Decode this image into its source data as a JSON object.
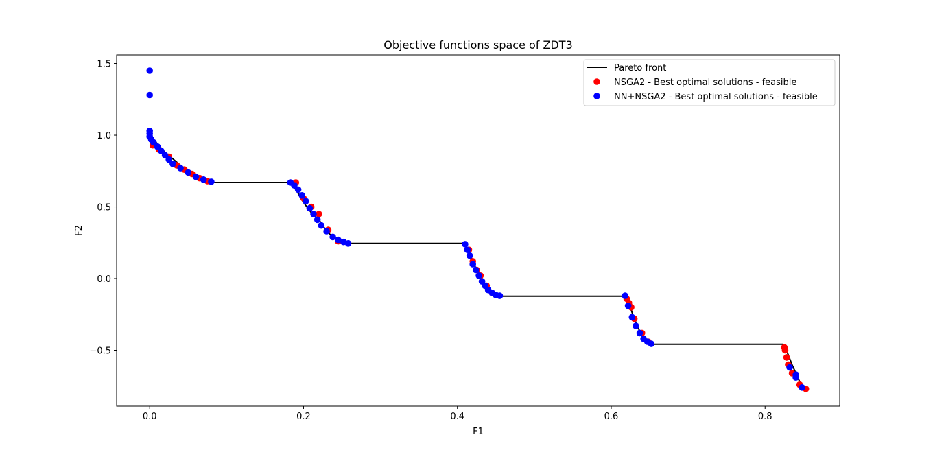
{
  "colors": {
    "pareto_front": "#000000",
    "nsga2": "#ff0000",
    "nn_nsga2": "#0000ff"
  },
  "chart_data": {
    "type": "scatter",
    "title": "Objective functions space of ZDT3",
    "xlabel": "F1",
    "ylabel": "F2",
    "xlim": [
      -0.043,
      0.897
    ],
    "ylim": [
      -0.89,
      1.56
    ],
    "xticks": [
      0.0,
      0.2,
      0.4,
      0.6,
      0.8
    ],
    "xtick_labels": [
      "0.0",
      "0.2",
      "0.4",
      "0.6",
      "0.8"
    ],
    "yticks": [
      -0.5,
      0.0,
      0.5,
      1.0,
      1.5
    ],
    "ytick_labels": [
      "−0.5",
      "0.0",
      "0.5",
      "1.0",
      "1.5"
    ],
    "grid": false,
    "legend_position": "top-right",
    "legend": [
      {
        "label": "Pareto front",
        "marker": "line",
        "color": "#000000"
      },
      {
        "label": "NSGA2 - Best optimal solutions - feasible",
        "marker": "circle",
        "color": "#ff0000"
      },
      {
        "label": "NN+NSGA2 - Best optimal solutions - feasible",
        "marker": "circle",
        "color": "#0000ff"
      }
    ],
    "series": [
      {
        "name": "Pareto front",
        "kind": "line",
        "color": "#000000",
        "x": [
          0.0,
          0.02,
          0.04,
          0.06,
          0.083,
          0.182,
          0.19,
          0.2,
          0.21,
          0.22,
          0.23,
          0.24,
          0.25,
          0.257,
          0.409,
          0.415,
          0.42,
          0.425,
          0.43,
          0.435,
          0.44,
          0.445,
          0.45,
          0.4538,
          0.6184,
          0.622,
          0.626,
          0.63,
          0.634,
          0.638,
          0.642,
          0.646,
          0.65,
          0.6525,
          0.8234,
          0.83,
          0.835,
          0.84,
          0.845,
          0.8518
        ],
        "y": [
          1.0,
          0.88,
          0.79,
          0.71,
          0.67,
          0.67,
          0.62,
          0.53,
          0.46,
          0.41,
          0.33,
          0.28,
          0.255,
          0.245,
          0.245,
          0.19,
          0.12,
          0.06,
          0.02,
          -0.03,
          -0.07,
          -0.09,
          -0.115,
          -0.123,
          -0.123,
          -0.16,
          -0.22,
          -0.28,
          -0.33,
          -0.38,
          -0.41,
          -0.44,
          -0.455,
          -0.458,
          -0.458,
          -0.53,
          -0.6,
          -0.66,
          -0.72,
          -0.773
        ]
      },
      {
        "name": "NSGA2 - Best optimal solutions - feasible",
        "kind": "scatter",
        "color": "#ff0000",
        "x": [
          0.004,
          0.012,
          0.025,
          0.035,
          0.045,
          0.055,
          0.065,
          0.075,
          0.19,
          0.2,
          0.21,
          0.22,
          0.232,
          0.245,
          0.415,
          0.42,
          0.425,
          0.43,
          0.438,
          0.445,
          0.62,
          0.623,
          0.626,
          0.63,
          0.64,
          0.648,
          0.825,
          0.826,
          0.828,
          0.83,
          0.835,
          0.845,
          0.853
        ],
        "y": [
          0.93,
          0.9,
          0.85,
          0.79,
          0.76,
          0.73,
          0.7,
          0.68,
          0.67,
          0.56,
          0.5,
          0.45,
          0.34,
          0.26,
          0.2,
          0.12,
          0.06,
          0.02,
          -0.05,
          -0.1,
          -0.14,
          -0.17,
          -0.2,
          -0.28,
          -0.38,
          -0.44,
          -0.48,
          -0.5,
          -0.55,
          -0.6,
          -0.66,
          -0.74,
          -0.77
        ]
      },
      {
        "name": "NN+NSGA2 - Best optimal solutions - feasible",
        "kind": "scatter",
        "color": "#0000ff",
        "x": [
          0.0,
          0.0,
          0.0,
          0.0,
          0.0,
          0.002,
          0.005,
          0.01,
          0.015,
          0.02,
          0.025,
          0.03,
          0.04,
          0.05,
          0.06,
          0.07,
          0.08,
          0.183,
          0.188,
          0.193,
          0.198,
          0.203,
          0.208,
          0.213,
          0.218,
          0.223,
          0.23,
          0.238,
          0.245,
          0.252,
          0.258,
          0.41,
          0.413,
          0.416,
          0.42,
          0.424,
          0.428,
          0.432,
          0.436,
          0.44,
          0.445,
          0.45,
          0.455,
          0.618,
          0.622,
          0.627,
          0.632,
          0.637,
          0.642,
          0.647,
          0.652,
          0.832,
          0.84,
          0.84,
          0.848
        ],
        "y": [
          1.45,
          1.28,
          1.03,
          1.01,
          0.99,
          0.97,
          0.95,
          0.92,
          0.89,
          0.86,
          0.83,
          0.8,
          0.77,
          0.74,
          0.71,
          0.69,
          0.675,
          0.67,
          0.65,
          0.62,
          0.58,
          0.54,
          0.49,
          0.45,
          0.41,
          0.37,
          0.33,
          0.29,
          0.27,
          0.255,
          0.245,
          0.24,
          0.2,
          0.16,
          0.1,
          0.06,
          0.02,
          -0.02,
          -0.05,
          -0.08,
          -0.1,
          -0.115,
          -0.12,
          -0.12,
          -0.19,
          -0.27,
          -0.33,
          -0.38,
          -0.42,
          -0.44,
          -0.455,
          -0.62,
          -0.67,
          -0.69,
          -0.76
        ]
      }
    ]
  }
}
